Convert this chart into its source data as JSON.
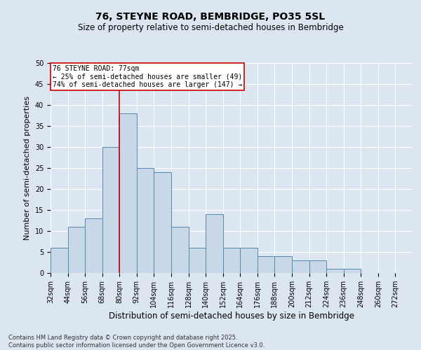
{
  "title1": "76, STEYNE ROAD, BEMBRIDGE, PO35 5SL",
  "title2": "Size of property relative to semi-detached houses in Bembridge",
  "xlabel": "Distribution of semi-detached houses by size in Bembridge",
  "ylabel": "Number of semi-detached properties",
  "footnote1": "Contains HM Land Registry data © Crown copyright and database right 2025.",
  "footnote2": "Contains public sector information licensed under the Open Government Licence v3.0.",
  "bin_edges": [
    32,
    44,
    56,
    68,
    80,
    92,
    104,
    116,
    128,
    140,
    152,
    164,
    176,
    188,
    200,
    212,
    224,
    236,
    248,
    260,
    272
  ],
  "bar_heights": [
    6,
    11,
    13,
    30,
    38,
    25,
    24,
    11,
    6,
    14,
    6,
    6,
    4,
    4,
    3,
    3,
    1,
    1,
    0,
    0
  ],
  "bar_color": "#c8d8e8",
  "bar_edge_color": "#5588aa",
  "red_line_x": 80,
  "red_line_color": "#cc0000",
  "annotation_title": "76 STEYNE ROAD: 77sqm",
  "annotation_line1": "← 25% of semi-detached houses are smaller (49)",
  "annotation_line2": "74% of semi-detached houses are larger (147) →",
  "annotation_box_color": "#ffffff",
  "annotation_box_edge": "#cc0000",
  "ylim": [
    0,
    50
  ],
  "yticks": [
    0,
    5,
    10,
    15,
    20,
    25,
    30,
    35,
    40,
    45,
    50
  ],
  "background_color": "#dce6f0",
  "grid_color": "#ffffff",
  "title1_fontsize": 10,
  "title2_fontsize": 8.5,
  "xlabel_fontsize": 8.5,
  "ylabel_fontsize": 8,
  "tick_fontsize": 7,
  "annotation_fontsize": 7,
  "footnote_fontsize": 6
}
